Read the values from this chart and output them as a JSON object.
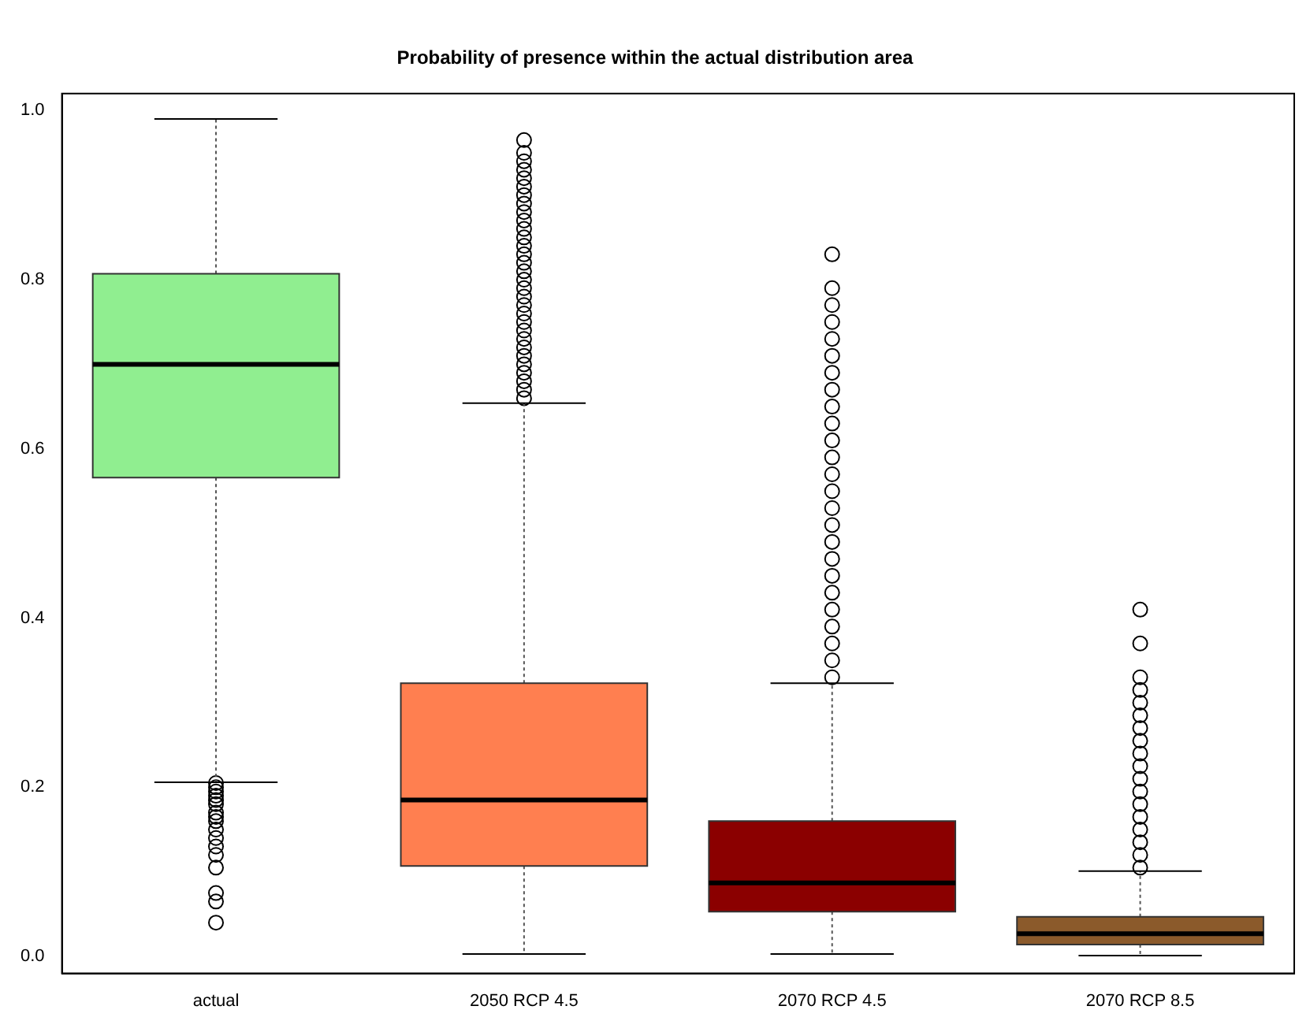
{
  "chart_data": {
    "type": "box",
    "title": "Probability of presence within the actual distribution area",
    "categories": [
      "actual",
      "2050 RCP 4.5",
      "2070 RCP 4.5",
      "2070 RCP 8.5"
    ],
    "colors": [
      "#90ee90",
      "#ff7f50",
      "#8b0000",
      "#8b5a2b"
    ],
    "boxes": [
      {
        "low": 0.206,
        "q1": 0.566,
        "median": 0.7,
        "q3": 0.807,
        "high": 0.99,
        "outliers": [
          0.04,
          0.065,
          0.075,
          0.105,
          0.12,
          0.13,
          0.14,
          0.15,
          0.16,
          0.165,
          0.17,
          0.18,
          0.185,
          0.19,
          0.195,
          0.2,
          0.205
        ]
      },
      {
        "low": 0.003,
        "q1": 0.107,
        "median": 0.185,
        "q3": 0.323,
        "high": 0.654,
        "outliers": [
          0.66,
          0.67,
          0.68,
          0.69,
          0.7,
          0.71,
          0.72,
          0.73,
          0.74,
          0.75,
          0.76,
          0.77,
          0.78,
          0.79,
          0.8,
          0.81,
          0.82,
          0.83,
          0.84,
          0.85,
          0.86,
          0.87,
          0.88,
          0.89,
          0.9,
          0.91,
          0.92,
          0.93,
          0.94,
          0.95,
          0.965
        ]
      },
      {
        "low": 0.003,
        "q1": 0.053,
        "median": 0.087,
        "q3": 0.16,
        "high": 0.323,
        "outliers": [
          0.33,
          0.35,
          0.37,
          0.39,
          0.41,
          0.43,
          0.45,
          0.47,
          0.49,
          0.51,
          0.53,
          0.55,
          0.57,
          0.59,
          0.61,
          0.63,
          0.65,
          0.67,
          0.69,
          0.71,
          0.73,
          0.75,
          0.77,
          0.79,
          0.83
        ]
      },
      {
        "low": 0.001,
        "q1": 0.014,
        "median": 0.027,
        "q3": 0.047,
        "high": 0.101,
        "outliers": [
          0.105,
          0.12,
          0.135,
          0.15,
          0.165,
          0.18,
          0.195,
          0.21,
          0.225,
          0.24,
          0.255,
          0.27,
          0.285,
          0.3,
          0.315,
          0.33,
          0.37,
          0.41
        ]
      }
    ],
    "ylim": [
      -0.02,
      1.02
    ],
    "yticks": [
      {
        "value": 0,
        "label": "0.0"
      },
      {
        "value": 0.2,
        "label": "0.2"
      },
      {
        "value": 0.4,
        "label": "0.4"
      },
      {
        "value": 0.6,
        "label": "0.6"
      },
      {
        "value": 0.8,
        "label": "0.8"
      },
      {
        "value": 1,
        "label": "1.0"
      }
    ],
    "grid": false,
    "legend": false
  }
}
